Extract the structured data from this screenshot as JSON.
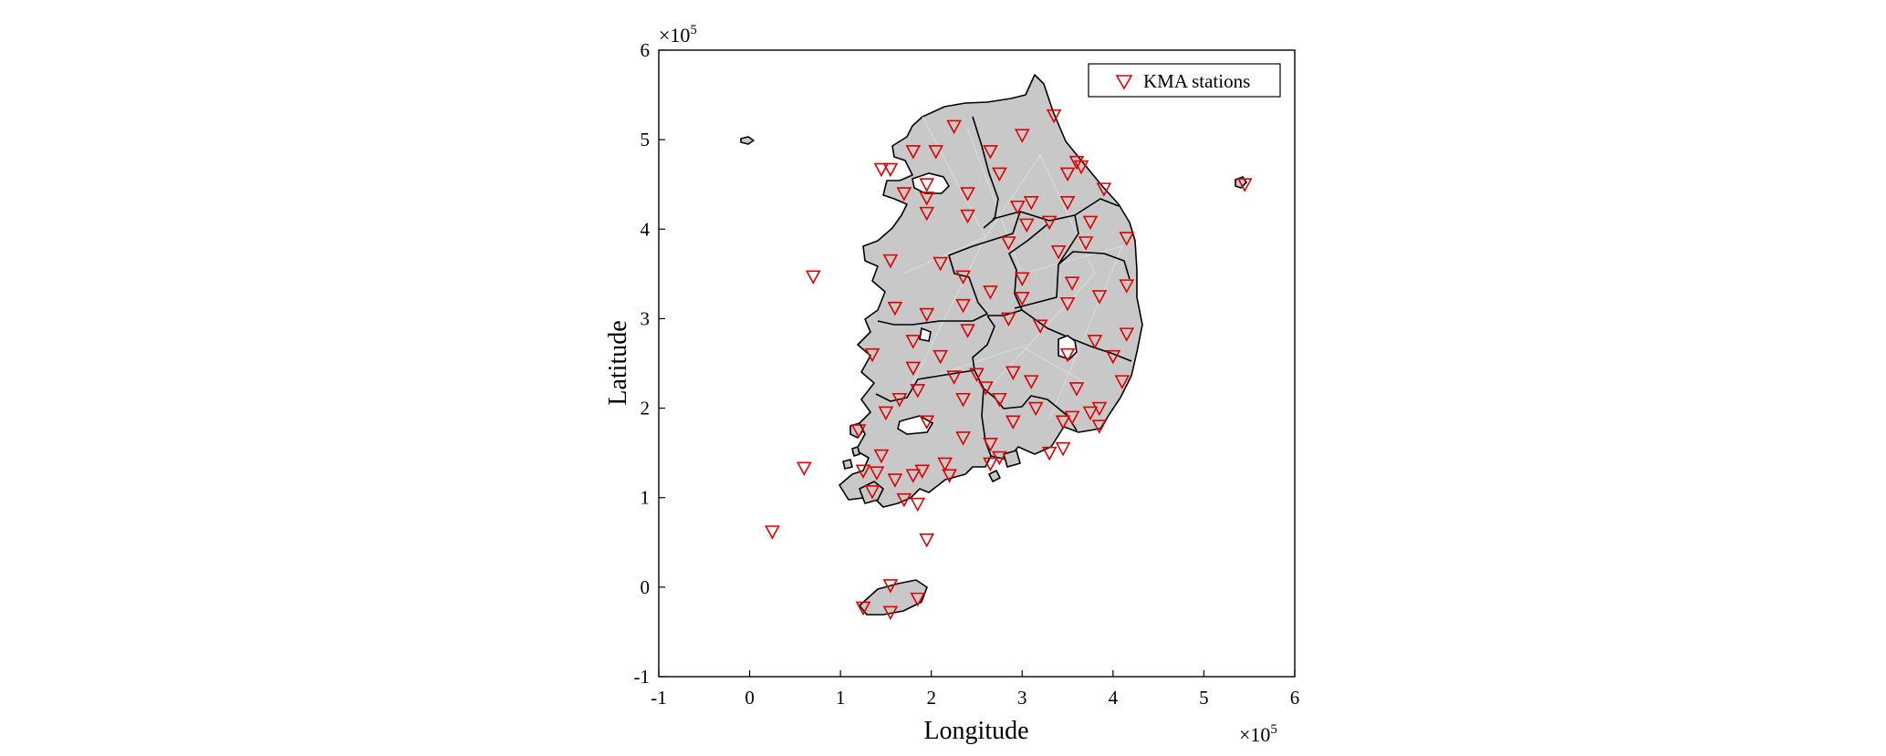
{
  "map": {
    "x_axis": {
      "label": "Longitude",
      "ticks": [
        "-1",
        "0",
        "1",
        "2",
        "3",
        "4",
        "5",
        "6"
      ],
      "range": [
        -1,
        6
      ],
      "multiplier": "×10",
      "exponent": "5"
    },
    "y_axis": {
      "label": "Latitude",
      "ticks": [
        "-1",
        "0",
        "1",
        "2",
        "3",
        "4",
        "5",
        "6"
      ],
      "range": [
        -1,
        6
      ],
      "multiplier": "×10",
      "exponent": "5"
    },
    "legend": {
      "label": "KMA stations",
      "marker": "red-down-triangle",
      "placement": "top-right"
    },
    "colors": {
      "land": "#c8c8c8",
      "station": "#e00000",
      "border": "#000000"
    },
    "stations": [
      [
        2.25,
        5.15
      ],
      [
        3.0,
        5.05
      ],
      [
        3.35,
        5.27
      ],
      [
        1.8,
        4.87
      ],
      [
        2.05,
        4.87
      ],
      [
        2.65,
        4.87
      ],
      [
        1.55,
        4.67
      ],
      [
        2.75,
        4.62
      ],
      [
        3.6,
        4.75
      ],
      [
        3.65,
        4.7
      ],
      [
        1.95,
        4.5
      ],
      [
        1.7,
        4.4
      ],
      [
        1.95,
        4.35
      ],
      [
        2.4,
        4.4
      ],
      [
        3.1,
        4.3
      ],
      [
        3.5,
        4.3
      ],
      [
        3.9,
        4.45
      ],
      [
        3.5,
        4.62
      ],
      [
        1.95,
        4.18
      ],
      [
        2.4,
        4.15
      ],
      [
        2.95,
        4.25
      ],
      [
        3.05,
        4.05
      ],
      [
        3.3,
        4.08
      ],
      [
        3.75,
        4.08
      ],
      [
        4.15,
        3.9
      ],
      [
        2.85,
        3.85
      ],
      [
        3.7,
        3.85
      ],
      [
        1.55,
        3.65
      ],
      [
        2.1,
        3.62
      ],
      [
        3.4,
        3.75
      ],
      [
        2.35,
        3.47
      ],
      [
        3.0,
        3.45
      ],
      [
        3.55,
        3.4
      ],
      [
        4.15,
        3.37
      ],
      [
        2.65,
        3.3
      ],
      [
        3.0,
        3.23
      ],
      [
        3.85,
        3.25
      ],
      [
        1.6,
        3.12
      ],
      [
        1.95,
        3.05
      ],
      [
        2.35,
        3.15
      ],
      [
        2.85,
        3.0
      ],
      [
        3.2,
        2.92
      ],
      [
        3.5,
        3.17
      ],
      [
        4.15,
        2.83
      ],
      [
        2.4,
        2.87
      ],
      [
        1.8,
        2.75
      ],
      [
        3.8,
        2.75
      ],
      [
        3.5,
        2.6
      ],
      [
        4.0,
        2.58
      ],
      [
        1.35,
        2.6
      ],
      [
        2.1,
        2.58
      ],
      [
        1.8,
        2.45
      ],
      [
        2.5,
        2.38
      ],
      [
        2.25,
        2.35
      ],
      [
        2.9,
        2.4
      ],
      [
        3.1,
        2.3
      ],
      [
        3.6,
        2.22
      ],
      [
        2.6,
        2.23
      ],
      [
        1.65,
        2.1
      ],
      [
        1.85,
        2.2
      ],
      [
        2.75,
        2.1
      ],
      [
        2.35,
        2.1
      ],
      [
        4.1,
        2.3
      ],
      [
        1.5,
        1.95
      ],
      [
        3.15,
        2.0
      ],
      [
        3.75,
        1.95
      ],
      [
        3.85,
        2.0
      ],
      [
        2.9,
        1.85
      ],
      [
        1.95,
        1.85
      ],
      [
        3.45,
        1.85
      ],
      [
        3.55,
        1.9
      ],
      [
        3.85,
        1.8
      ],
      [
        2.35,
        1.67
      ],
      [
        2.65,
        1.6
      ],
      [
        1.2,
        1.75
      ],
      [
        1.25,
        1.3
      ],
      [
        1.45,
        1.47
      ],
      [
        1.4,
        1.28
      ],
      [
        1.9,
        1.3
      ],
      [
        2.15,
        1.38
      ],
      [
        2.65,
        1.38
      ],
      [
        2.75,
        1.45
      ],
      [
        3.3,
        1.5
      ],
      [
        3.45,
        1.55
      ],
      [
        0.6,
        1.33
      ],
      [
        1.6,
        1.2
      ],
      [
        1.8,
        1.25
      ],
      [
        2.2,
        1.25
      ],
      [
        1.35,
        1.07
      ],
      [
        1.7,
        0.98
      ],
      [
        1.85,
        0.93
      ],
      [
        0.25,
        0.62
      ],
      [
        1.95,
        0.53
      ],
      [
        1.55,
        0.02
      ],
      [
        1.25,
        -0.23
      ],
      [
        1.55,
        -0.28
      ],
      [
        1.85,
        -0.13
      ],
      [
        0.7,
        3.47
      ],
      [
        5.45,
        4.5
      ],
      [
        1.45,
        4.67
      ]
    ]
  }
}
